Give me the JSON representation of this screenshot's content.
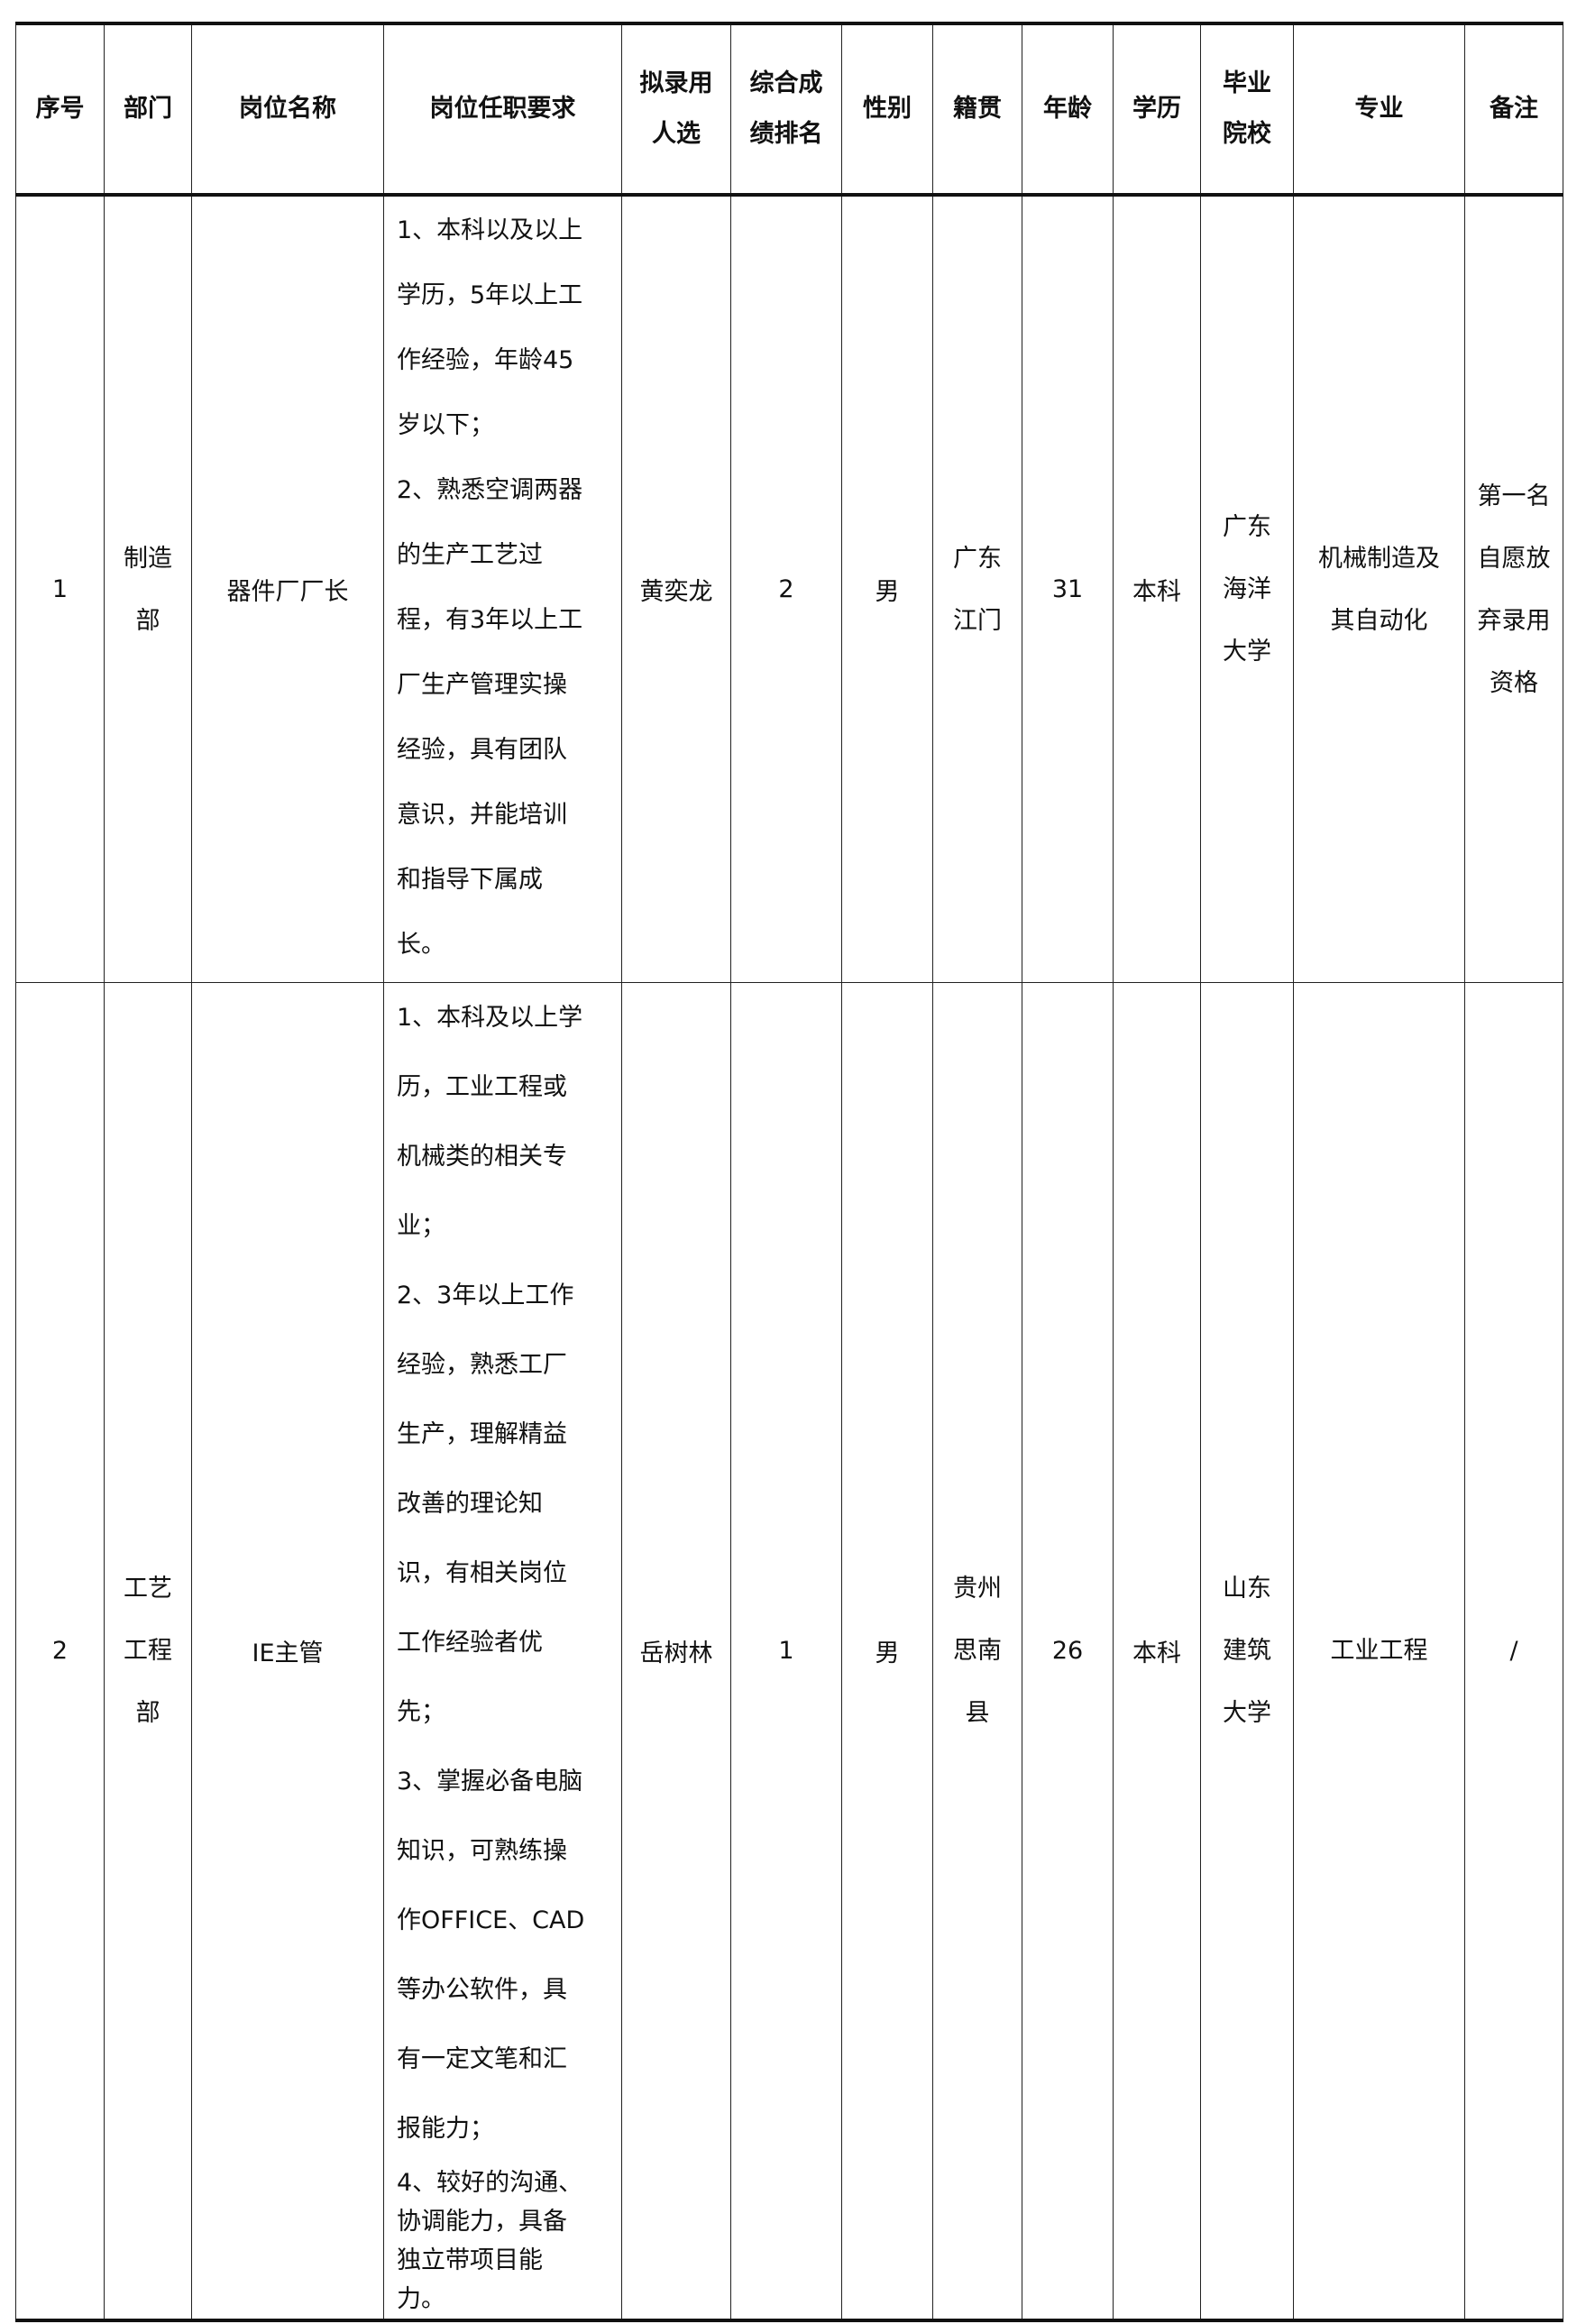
{
  "headers": [
    {
      "lines": [
        "序号"
      ]
    },
    {
      "lines": [
        "部门"
      ]
    },
    {
      "lines": [
        "岗位名称"
      ]
    },
    {
      "lines": [
        "岗位任职要求"
      ]
    },
    {
      "lines": [
        "拟录用",
        "人选"
      ]
    },
    {
      "lines": [
        "综合成",
        "绩排名"
      ]
    },
    {
      "lines": [
        "性别"
      ]
    },
    {
      "lines": [
        "籍贯"
      ]
    },
    {
      "lines": [
        "年龄"
      ]
    },
    {
      "lines": [
        "学历"
      ]
    },
    {
      "lines": [
        "毕业",
        "院校"
      ]
    },
    {
      "lines": [
        "专业"
      ]
    },
    {
      "lines": [
        "备注"
      ]
    }
  ],
  "rows": [
    {
      "no": "1",
      "dept": [
        "制造",
        "部"
      ],
      "position": "器件厂厂长",
      "requirements": [
        "1、本科以及以上",
        "学历，5年以上工",
        "作经验，年龄45",
        "岁以下；",
        "2、熟悉空调两器",
        "的生产工艺过",
        "程，有3年以上工",
        "厂生产管理实操",
        "经验，具有团队",
        "意识，并能培训",
        "和指导下属成",
        "长。"
      ],
      "candidate": "黄奕龙",
      "rank": "2",
      "gender": "男",
      "origin": [
        "广东",
        "江门"
      ],
      "age": "31",
      "education": "本科",
      "school": [
        "广东",
        "海洋",
        "大学"
      ],
      "major": [
        "机械制造及",
        "其自动化"
      ],
      "remark": [
        "第一名",
        "自愿放",
        "弃录用",
        "资格"
      ]
    },
    {
      "no": "2",
      "dept": [
        "工艺",
        "工程",
        "部"
      ],
      "position": "IE主管",
      "requirements": [
        "1、本科及以上学",
        "历，工业工程或",
        "机械类的相关专",
        "业；",
        "2、3年以上工作",
        "经验，熟悉工厂",
        "生产，理解精益",
        "改善的理论知",
        "识，有相关岗位",
        "工作经验者优",
        "先；",
        "3、掌握必备电脑",
        "知识，可熟练操",
        "作OFFICE、CAD",
        "等办公软件，具",
        "有一定文笔和汇",
        "报能力；",
        "4、较好的沟通、",
        "协调能力，具备",
        "独立带项目能",
        "力。"
      ],
      "candidate": "岳树林",
      "rank": "1",
      "gender": "男",
      "origin": [
        "贵州",
        "思南",
        "县"
      ],
      "age": "26",
      "education": "本科",
      "school": [
        "山东",
        "建筑",
        "大学"
      ],
      "major": [
        "工业工程"
      ],
      "remark": [
        "/"
      ]
    }
  ]
}
